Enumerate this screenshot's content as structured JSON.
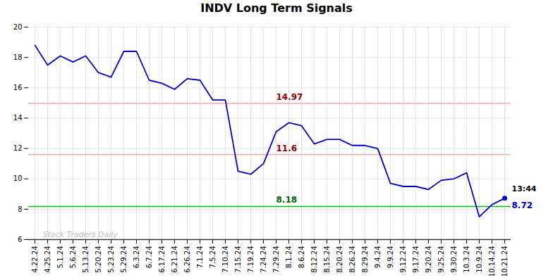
{
  "chart_data": {
    "type": "line",
    "title": "INDV Long Term Signals",
    "categories": [
      "4.22.24",
      "4.25.24",
      "5.1.24",
      "5.6.24",
      "5.13.24",
      "5.20.24",
      "5.23.24",
      "5.29.24",
      "6.3.24",
      "6.7.24",
      "6.17.24",
      "6.21.24",
      "6.26.24",
      "7.1.24",
      "7.5.24",
      "7.10.24",
      "7.15.24",
      "7.19.24",
      "7.24.24",
      "7.29.24",
      "8.1.24",
      "8.6.24",
      "8.12.24",
      "8.15.24",
      "8.20.24",
      "8.26.24",
      "8.29.24",
      "9.4.24",
      "9.9.24",
      "9.12.24",
      "9.17.24",
      "9.20.24",
      "9.25.24",
      "9.30.24",
      "10.3.24",
      "10.9.24",
      "10.14.24",
      "10.21.24"
    ],
    "values": [
      18.8,
      17.5,
      18.1,
      17.7,
      18.1,
      17.0,
      16.7,
      18.4,
      18.4,
      16.5,
      16.3,
      15.9,
      16.6,
      16.5,
      15.2,
      15.2,
      10.5,
      10.3,
      11.0,
      13.1,
      13.7,
      13.5,
      12.3,
      12.6,
      12.6,
      12.2,
      12.2,
      12.0,
      9.7,
      9.5,
      9.5,
      9.3,
      9.9,
      10.0,
      10.4,
      7.5,
      8.3,
      8.72
    ],
    "color": "#0000cc",
    "marker": "circle",
    "ylim": [
      6,
      20
    ],
    "yticks": [
      6,
      8,
      10,
      12,
      14,
      16,
      18,
      20
    ],
    "grid": true,
    "reference_lines": [
      {
        "value": 14.97,
        "label": "14.97",
        "color": "#ffaaaa",
        "label_color": "#990000",
        "x": "7.29.24"
      },
      {
        "value": 11.6,
        "label": "11.6",
        "color": "#ffaaaa",
        "label_color": "#990000",
        "x": "7.29.24"
      },
      {
        "value": 8.18,
        "label": "8.18",
        "color": "#00bb00",
        "label_color": "#006600",
        "x": "7.29.24"
      }
    ],
    "last_point_annotations": [
      {
        "text": "13:44",
        "color": "#000000"
      },
      {
        "text": "8.72",
        "color": "#0000cc"
      }
    ],
    "watermark": "Stock Traders Daily"
  }
}
